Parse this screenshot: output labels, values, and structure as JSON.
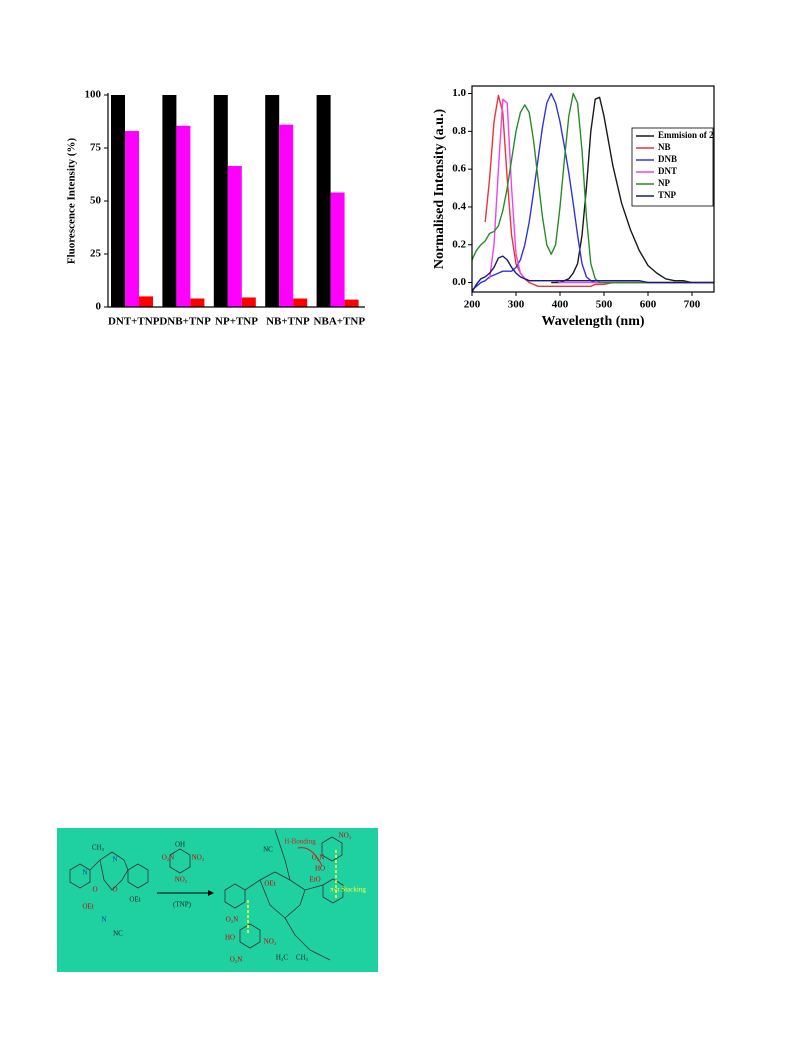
{
  "chart_data": [
    {
      "type": "bar",
      "ylabel": "Fluorescence Intensity (%)",
      "categories": [
        "DNT+TNP",
        "DNB+TNP",
        "NP+TNP",
        "NB+TNP",
        "NBA+TNP"
      ],
      "series": [
        {
          "color": "#000000",
          "values": [
            100,
            100,
            100,
            100,
            100
          ]
        },
        {
          "color": "#ff00ff",
          "values": [
            83,
            85.5,
            66.5,
            86,
            54
          ]
        },
        {
          "color": "#ff0000",
          "values": [
            5,
            4,
            4.5,
            4,
            3.5
          ]
        }
      ],
      "ylim": [
        0,
        100
      ],
      "yticks": [
        0,
        25,
        50,
        75,
        100
      ]
    },
    {
      "type": "line",
      "xlabel": "Wavelength (nm)",
      "ylabel": "Normalised Intensity (a.u.)",
      "x": [
        200,
        210,
        220,
        230,
        240,
        250,
        260,
        270,
        280,
        290,
        300,
        310,
        320,
        330,
        340,
        350,
        360,
        370,
        380,
        390,
        400,
        410,
        420,
        430,
        440,
        450,
        460,
        470,
        480,
        490,
        500,
        520,
        540,
        560,
        580,
        600,
        620,
        640,
        660,
        680,
        700,
        720,
        740,
        750
      ],
      "series": [
        {
          "name": "Emmision of 2",
          "color": "#1a1a1a",
          "values": [
            null,
            null,
            null,
            null,
            null,
            null,
            null,
            null,
            null,
            null,
            null,
            null,
            null,
            null,
            null,
            null,
            null,
            null,
            0.0,
            0.0,
            0.0,
            0.01,
            0.02,
            0.05,
            0.1,
            0.25,
            0.5,
            0.8,
            0.97,
            0.98,
            0.88,
            0.62,
            0.42,
            0.28,
            0.17,
            0.09,
            0.05,
            0.02,
            0.01,
            0.01,
            0.0,
            0.0,
            0.0,
            0.0
          ]
        },
        {
          "name": "NB",
          "color": "#ee3333",
          "values": [
            null,
            null,
            null,
            0.32,
            0.55,
            0.85,
            0.99,
            0.9,
            0.55,
            0.25,
            0.1,
            0.05,
            0.02,
            0.0,
            -0.01,
            -0.02,
            -0.02,
            -0.02,
            -0.02,
            -0.02,
            -0.02,
            -0.02,
            -0.02,
            -0.02,
            -0.02,
            -0.02,
            -0.02,
            -0.02,
            -0.01,
            -0.01,
            -0.01,
            0.0,
            0.0,
            0.0,
            0.0,
            0.0,
            0.0,
            0.0,
            0.0,
            0.0,
            0.0,
            0.0,
            0.0,
            0.0
          ]
        },
        {
          "name": "DNB",
          "color": "#3333dd",
          "values": [
            -0.04,
            -0.02,
            0.0,
            0.01,
            0.03,
            0.04,
            0.05,
            0.06,
            0.06,
            0.06,
            0.08,
            0.12,
            0.2,
            0.32,
            0.48,
            0.65,
            0.82,
            0.95,
            1.0,
            0.95,
            0.85,
            0.72,
            0.58,
            0.42,
            0.25,
            0.1,
            0.03,
            0.01,
            0.0,
            0.0,
            0.0,
            0.0,
            0.0,
            0.0,
            0.0,
            0.0,
            0.0,
            0.0,
            0.0,
            0.0,
            0.0,
            0.0,
            0.0,
            0.0
          ]
        },
        {
          "name": "DNT",
          "color": "#ee44ee",
          "values": [
            null,
            null,
            null,
            null,
            0.02,
            0.2,
            0.6,
            0.97,
            0.95,
            0.5,
            0.15,
            0.05,
            0.02,
            0.01,
            0.01,
            0.01,
            0.01,
            0.01,
            0.01,
            0.01,
            0.0,
            0.0,
            0.0,
            0.0,
            0.0,
            0.0,
            0.0,
            0.0,
            0.0,
            0.0,
            0.0,
            0.0,
            0.0,
            0.0,
            0.0,
            0.0,
            0.0,
            0.0,
            0.0,
            0.0,
            0.0,
            0.0,
            0.0,
            0.0
          ]
        },
        {
          "name": "NP",
          "color": "#2a8a2a",
          "values": [
            0.12,
            0.17,
            0.2,
            0.22,
            0.26,
            0.27,
            0.3,
            0.38,
            0.5,
            0.65,
            0.8,
            0.9,
            0.94,
            0.9,
            0.75,
            0.55,
            0.35,
            0.2,
            0.15,
            0.2,
            0.4,
            0.65,
            0.88,
            1.0,
            0.95,
            0.7,
            0.35,
            0.1,
            0.02,
            0.0,
            0.0,
            0.0,
            0.0,
            0.0,
            0.0,
            0.0,
            0.0,
            0.0,
            0.0,
            0.0,
            0.0,
            0.0,
            0.0,
            0.0
          ]
        },
        {
          "name": "TNP",
          "color": "#1a1a7a",
          "values": [
            -0.05,
            -0.01,
            0.02,
            0.03,
            0.05,
            0.08,
            0.13,
            0.14,
            0.12,
            0.08,
            0.05,
            0.03,
            0.02,
            0.01,
            0.01,
            0.01,
            0.01,
            0.01,
            0.01,
            0.01,
            0.01,
            0.01,
            0.01,
            0.01,
            0.01,
            0.01,
            0.01,
            0.01,
            0.01,
            0.01,
            0.01,
            0.01,
            0.01,
            0.01,
            0.01,
            0.0,
            0.0,
            0.0,
            0.0,
            0.0,
            0.0,
            0.0,
            0.0,
            0.0
          ]
        }
      ],
      "xlim": [
        200,
        750
      ],
      "xticks": [
        200,
        300,
        400,
        500,
        600,
        700
      ],
      "ylim": [
        -0.05,
        1.04
      ],
      "yticks": [
        {
          "value": 0,
          "label": "0.0"
        },
        0.2,
        0.4,
        0.6,
        0.8,
        {
          "value": 1,
          "label": "1.0"
        }
      ],
      "legend": "upper right"
    }
  ],
  "scheme": {
    "labels": [
      "CH₃",
      "N",
      "N",
      "O",
      "O",
      "OEt",
      "OEt",
      "N",
      "NC",
      "OH",
      "O₂N",
      "NO₂",
      "NO₂",
      "(TNP)",
      "H-Bonding",
      "NO₂",
      "O₂N",
      "HO",
      "EtO",
      "NC",
      "OEt",
      "π-π Stacking",
      "O₂N",
      "HO",
      "O₂N",
      "NO₂",
      "H₃C",
      "CH₃"
    ]
  }
}
